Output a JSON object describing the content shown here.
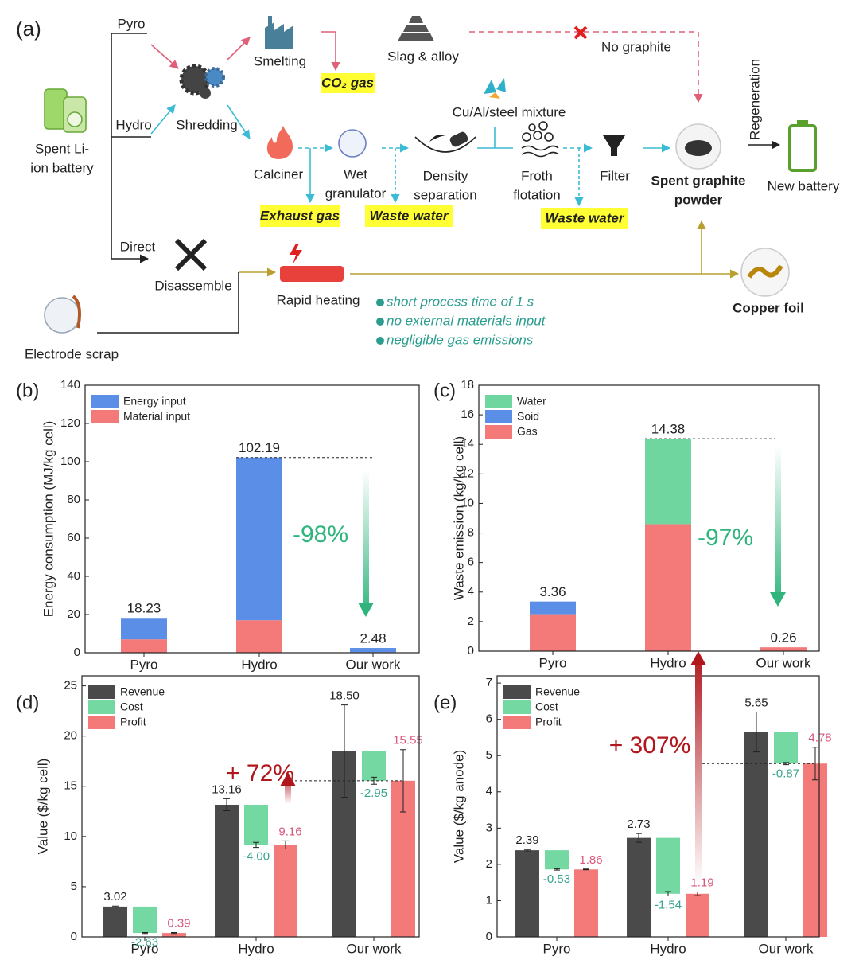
{
  "diagram": {
    "panel_label": "(a)",
    "routes": {
      "pyro": "Pyro",
      "hydro": "Hydro",
      "direct": "Direct"
    },
    "spent_battery": [
      "Spent Li-",
      "ion battery"
    ],
    "shredding": "Shredding",
    "smelting": "Smelting",
    "co2": "CO₂ gas",
    "slag": "Slag & alloy",
    "no_graphite": "No graphite",
    "mixture": "Cu/Al/steel mixture",
    "calciner": "Calciner",
    "wet_granulator": [
      "Wet",
      "granulator"
    ],
    "density_separation": [
      "Density",
      "separation"
    ],
    "froth_flotation": [
      "Froth",
      "flotation"
    ],
    "filter": "Filter",
    "graphite": [
      "Spent graphite",
      "powder"
    ],
    "regeneration": "Regeneration",
    "new_battery": "New battery",
    "exhaust_gas": "Exhaust gas",
    "waste_water_1": "Waste water",
    "waste_water_2": "Waste water",
    "disassemble": "Disassemble",
    "rapid_heating": "Rapid heating",
    "copper_foil": "Copper foil",
    "electrode_scrap": "Electrode scrap",
    "advantages": [
      "short process time of 1 s",
      "no external materials input",
      "negligible gas emissions"
    ]
  },
  "chart_data": [
    {
      "type": "stacked_bar",
      "panel_label": "(b)",
      "y_label": "Energy consumption (MJ/kg cell)",
      "categories": [
        "Pyro",
        "Hydro",
        "Our work"
      ],
      "series": [
        {
          "name": "Energy input",
          "color": "#5b8ee6",
          "values": [
            11.23,
            85.19,
            2.18
          ]
        },
        {
          "name": "Material input",
          "color": "#f47a7a",
          "values": [
            7,
            17,
            0.3
          ]
        }
      ],
      "total_labels": [
        18.23,
        102.19,
        2.48
      ],
      "ylim": [
        0,
        140
      ],
      "yticks": [
        0,
        20,
        40,
        60,
        80,
        100,
        120,
        140
      ],
      "legend": "upper left",
      "annotation": "-98%",
      "annotation_color": "#2fb57c"
    },
    {
      "type": "stacked_bar",
      "panel_label": "(c)",
      "y_label": "Waste emission (kg/kg cell)",
      "categories": [
        "Pyro",
        "Hydro",
        "Our work"
      ],
      "series": [
        {
          "name": "Water",
          "color": "#6fd6a0",
          "values": [
            0,
            5.78,
            0
          ]
        },
        {
          "name": "Soid",
          "color": "#5b8ee6",
          "values": [
            0.86,
            0,
            0
          ]
        },
        {
          "name": "Gas",
          "color": "#f47a7a",
          "values": [
            2.5,
            8.6,
            0.26
          ]
        }
      ],
      "total_labels": [
        3.36,
        14.38,
        0.26
      ],
      "ylim": [
        0,
        18
      ],
      "yticks": [
        0,
        2,
        4,
        6,
        8,
        10,
        12,
        14,
        16,
        18
      ],
      "legend": "upper left",
      "annotation": "-97%",
      "annotation_color": "#2fb57c"
    },
    {
      "type": "waterfall",
      "panel_label": "(d)",
      "y_label": "Value ($/kg cell)",
      "categories": [
        "Pyro",
        "Hydro",
        "Our work"
      ],
      "series": [
        {
          "name": "Revenue",
          "color": "#4a4a4a",
          "label_color": "#222222",
          "values": [
            3.02,
            13.16,
            18.5
          ],
          "value_labels": [
            "3.02",
            "13.16",
            "18.50"
          ],
          "errors": [
            0.05,
            0.6,
            4.6
          ]
        },
        {
          "name": "Cost",
          "color": "#74d8a2",
          "label_color": "#3aa58e",
          "values": [
            -2.63,
            -4,
            -2.95
          ],
          "value_labels": [
            "-2.63",
            "-4.00",
            "-2.95"
          ],
          "errors": [
            0.05,
            0.25,
            0.35
          ]
        },
        {
          "name": "Profit",
          "color": "#f47a7a",
          "label_color": "#d9577a",
          "values": [
            0.39,
            9.16,
            15.55
          ],
          "errors": [
            0.05,
            0.4,
            3.1
          ]
        }
      ],
      "ylim": [
        0,
        26
      ],
      "yticks": [
        0,
        5,
        10,
        15,
        20,
        25
      ],
      "legend": "upper left",
      "annotation": "+ 72%",
      "annotation_color": "#b0161c"
    },
    {
      "type": "waterfall",
      "panel_label": "(e)",
      "y_label": "Value ($/kg anode)",
      "categories": [
        "Pyro",
        "Hydro",
        "Our work"
      ],
      "series": [
        {
          "name": "Revenue",
          "color": "#4a4a4a",
          "label_color": "#222222",
          "values": [
            2.39,
            2.73,
            5.65
          ],
          "errors": [
            0.02,
            0.12,
            0.55
          ]
        },
        {
          "name": "Cost",
          "color": "#74d8a2",
          "label_color": "#3aa58e",
          "values": [
            -0.53,
            -1.54,
            -0.87
          ],
          "errors": [
            0.02,
            0.06,
            0.03
          ]
        },
        {
          "name": "Profit",
          "color": "#f47a7a",
          "label_color": "#d9577a",
          "values": [
            1.86,
            1.19,
            4.78
          ],
          "errors": [
            0.01,
            0.05,
            0.45
          ]
        }
      ],
      "ylim": [
        0,
        7.2
      ],
      "yticks": [
        0,
        1,
        2,
        3,
        4,
        5,
        6,
        7
      ],
      "legend": "upper left",
      "annotation": "+ 307%",
      "annotation_color": "#b0161c"
    }
  ]
}
